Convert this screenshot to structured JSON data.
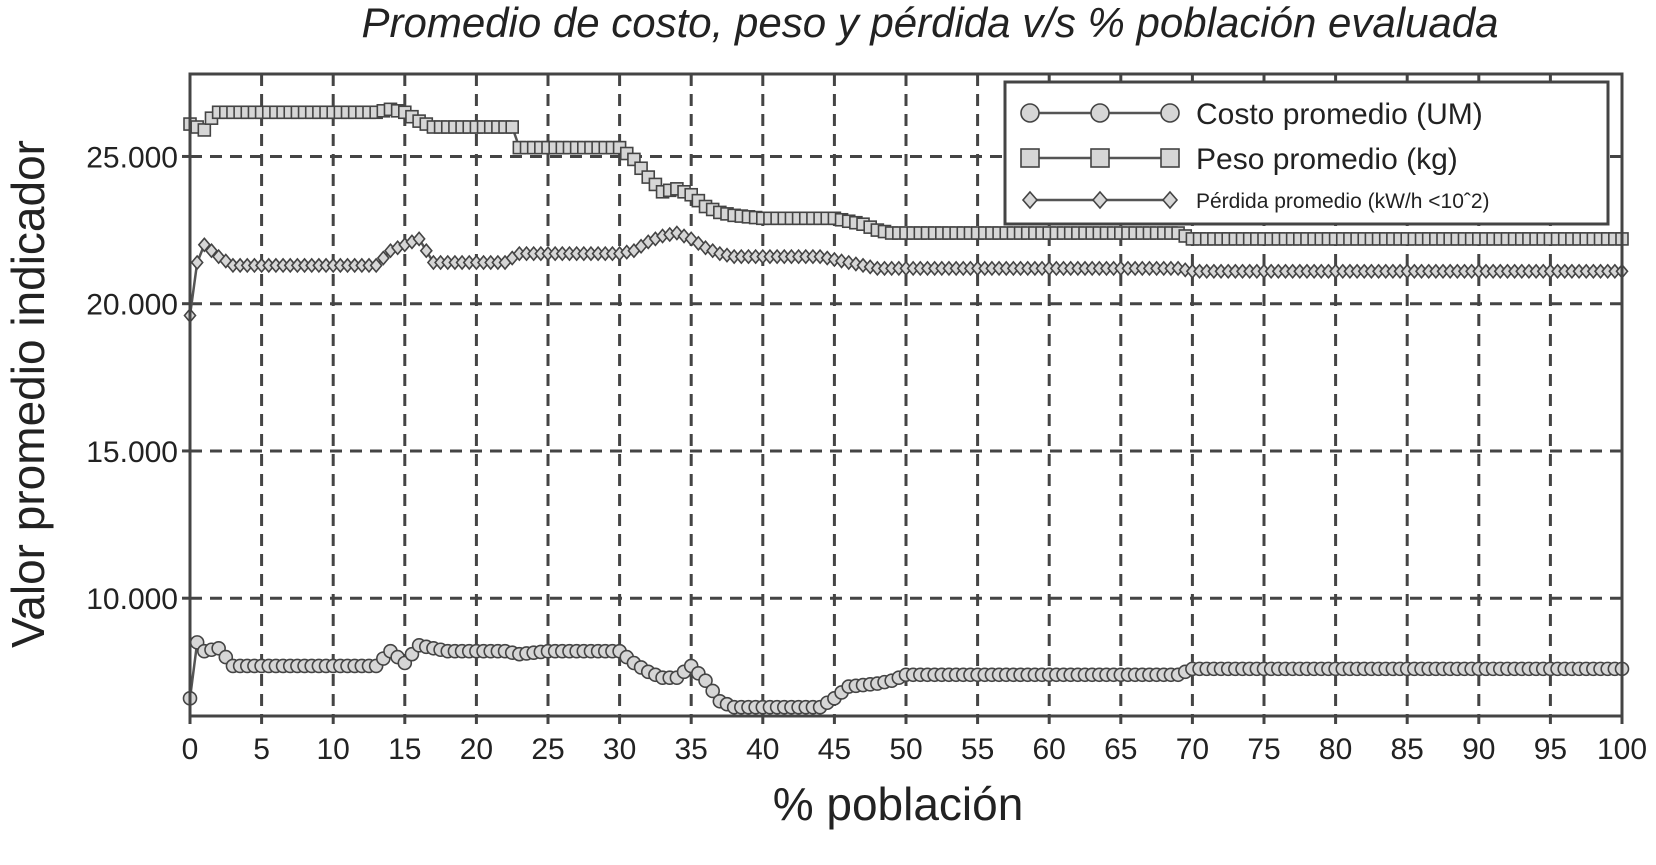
{
  "chart_data": {
    "type": "line",
    "title": "Promedio de costo, peso y pérdida v/s % población evaluada",
    "xlabel": "% población",
    "ylabel": "Valor promedio indicador",
    "xlim": [
      0,
      100
    ],
    "ylim": [
      6000,
      27800
    ],
    "x_ticks": [
      0,
      5,
      10,
      15,
      20,
      25,
      30,
      35,
      40,
      45,
      50,
      55,
      60,
      65,
      70,
      75,
      80,
      85,
      90,
      95,
      100
    ],
    "x_tick_labels": [
      "0",
      "5",
      "10",
      "15",
      "20",
      "25",
      "30",
      "35",
      "40",
      "45",
      "50",
      "55",
      "60",
      "65",
      "70",
      "75",
      "80",
      "85",
      "90",
      "95",
      "100"
    ],
    "y_ticks": [
      10000,
      15000,
      20000,
      25000
    ],
    "y_tick_labels": [
      "10.000",
      "15.000",
      "20.000",
      "25.000"
    ],
    "grid": true,
    "legend_position": "top-right",
    "series": [
      {
        "name": "Costo promedio (UM)",
        "marker": "circle",
        "x": [
          0,
          0.5,
          1,
          2,
          3,
          5,
          10,
          13,
          14,
          15,
          16,
          18,
          22,
          23,
          25,
          30,
          31,
          32,
          33,
          34,
          35,
          36,
          37,
          38,
          39,
          40,
          42,
          44,
          45,
          46,
          48,
          49,
          50,
          55,
          60,
          65,
          69,
          70,
          75,
          80,
          85,
          90,
          95,
          100
        ],
        "y": [
          6600,
          8500,
          8200,
          8300,
          7700,
          7700,
          7700,
          7700,
          8200,
          7800,
          8400,
          8200,
          8200,
          8100,
          8200,
          8200,
          7800,
          7500,
          7300,
          7300,
          7700,
          7200,
          6500,
          6300,
          6300,
          6300,
          6300,
          6300,
          6600,
          7000,
          7100,
          7200,
          7400,
          7400,
          7400,
          7400,
          7400,
          7600,
          7600,
          7600,
          7600,
          7600,
          7600,
          7600
        ]
      },
      {
        "name": "Peso promedio (kg)",
        "marker": "square",
        "x": [
          0,
          1,
          1.5,
          2,
          5,
          10,
          13,
          14,
          15,
          16,
          17,
          20,
          22.5,
          23,
          25,
          30,
          31,
          32,
          33,
          34,
          35,
          36,
          37,
          38,
          40,
          45,
          47,
          48,
          49,
          50,
          55,
          60,
          65,
          69,
          70,
          75,
          80,
          85,
          90,
          95,
          100
        ],
        "y": [
          26100,
          25900,
          26300,
          26500,
          26500,
          26500,
          26500,
          26600,
          26500,
          26200,
          26000,
          26000,
          26000,
          25300,
          25300,
          25300,
          24900,
          24300,
          23800,
          23900,
          23700,
          23300,
          23100,
          23000,
          22900,
          22900,
          22700,
          22500,
          22400,
          22400,
          22400,
          22400,
          22400,
          22400,
          22200,
          22200,
          22200,
          22200,
          22200,
          22200,
          22200
        ]
      },
      {
        "name": "Pérdida promedio (kW/h <10^2)",
        "marker": "diamond",
        "x": [
          0,
          0.5,
          1,
          2,
          3,
          5,
          10,
          13,
          14,
          15,
          16,
          17,
          20,
          22,
          23,
          25,
          30,
          31,
          32,
          33,
          34,
          35,
          36,
          37,
          38,
          40,
          44,
          45,
          46,
          47,
          48,
          50,
          55,
          60,
          65,
          69,
          70,
          75,
          80,
          85,
          90,
          95,
          100
        ],
        "y": [
          19600,
          21400,
          22000,
          21600,
          21300,
          21300,
          21300,
          21300,
          21800,
          22000,
          22200,
          21400,
          21400,
          21400,
          21700,
          21700,
          21700,
          21800,
          22100,
          22300,
          22400,
          22200,
          21900,
          21700,
          21600,
          21600,
          21600,
          21500,
          21400,
          21300,
          21200,
          21200,
          21200,
          21200,
          21200,
          21200,
          21100,
          21100,
          21100,
          21100,
          21100,
          21100,
          21100
        ]
      }
    ]
  },
  "legend": {
    "items": [
      {
        "label": "Costo promedio (UM)",
        "marker": "circle"
      },
      {
        "label": "Peso promedio (kg)",
        "marker": "square"
      },
      {
        "label": "Pérdida promedio (kW/h <10ˆ2)",
        "marker": "diamond"
      }
    ]
  },
  "colors": {
    "line": "#555555",
    "marker_fill": "#d6d6d6",
    "marker_stroke": "#444444",
    "grid": "#444444",
    "text": "#222222"
  }
}
